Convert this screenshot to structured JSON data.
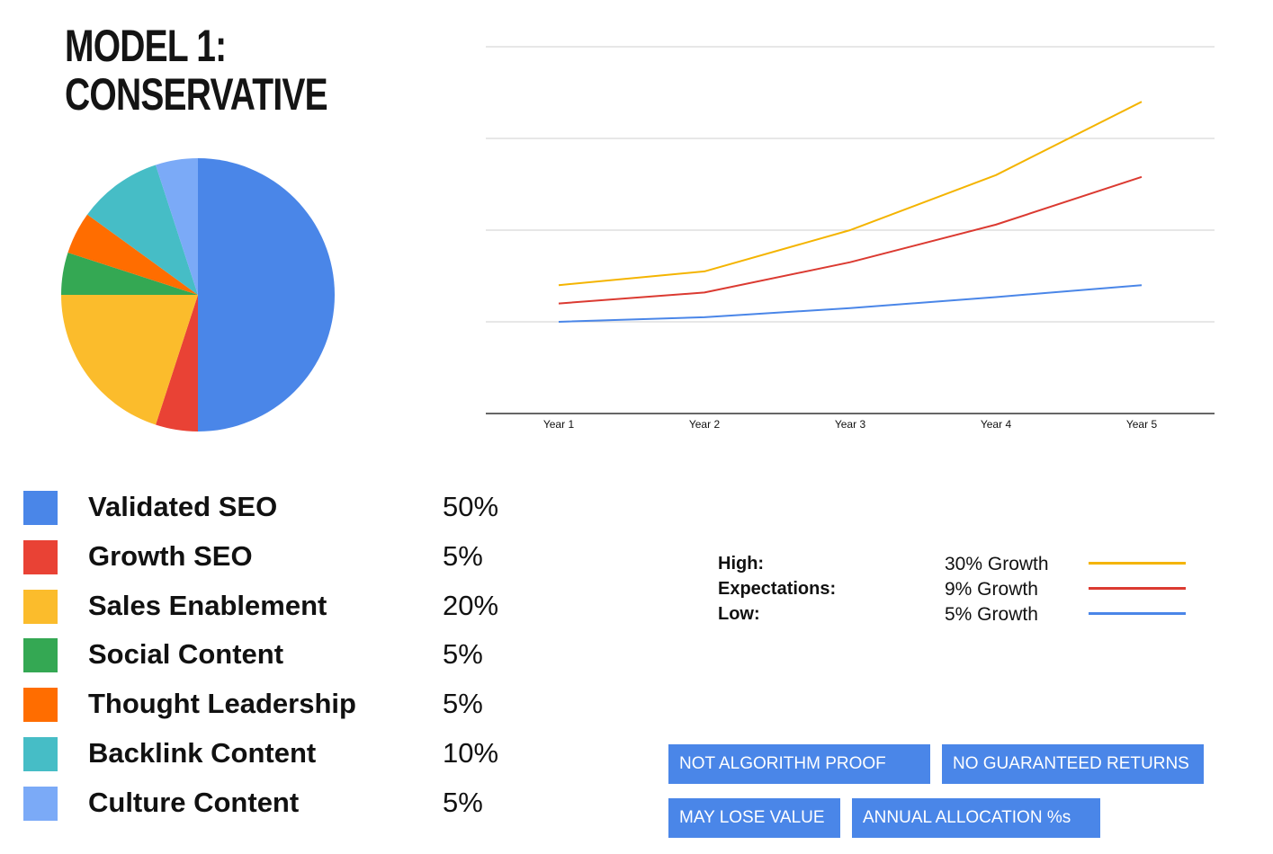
{
  "title": {
    "line1": "MODEL 1:",
    "line2": "CONSERVATIVE"
  },
  "allocation": [
    {
      "label": "Validated SEO",
      "value": "50%",
      "color": "#4a86e8"
    },
    {
      "label": "Growth SEO",
      "value": "5%",
      "color": "#e94235"
    },
    {
      "label": "Sales Enablement",
      "value": "20%",
      "color": "#fbbc2c"
    },
    {
      "label": "Social Content",
      "value": "5%",
      "color": "#34a853"
    },
    {
      "label": "Thought Leadership",
      "value": "5%",
      "color": "#ff6d00"
    },
    {
      "label": "Backlink Content",
      "value": "10%",
      "color": "#46bdc6"
    },
    {
      "label": "Culture Content",
      "value": "5%",
      "color": "#7baaf7"
    }
  ],
  "series_legend": [
    {
      "name": "High:",
      "desc": "30% Growth",
      "color": "#f4b400"
    },
    {
      "name": "Expectations:",
      "desc": "9% Growth",
      "color": "#db3a31"
    },
    {
      "name": "Low:",
      "desc": "5% Growth",
      "color": "#4a86e8"
    }
  ],
  "tags": [
    "NOT ALGORITHM PROOF",
    "NO GUARANTEED RETURNS",
    "MAY LOSE VALUE",
    "ANNUAL ALLOCATION %s"
  ],
  "chart_data": [
    {
      "type": "pie",
      "categories": [
        "Validated SEO",
        "Growth SEO",
        "Sales Enablement",
        "Social Content",
        "Thought Leadership",
        "Backlink Content",
        "Culture Content"
      ],
      "values": [
        50,
        5,
        20,
        5,
        5,
        10,
        5
      ],
      "colors": [
        "#4a86e8",
        "#e94235",
        "#fbbc2c",
        "#34a853",
        "#ff6d00",
        "#46bdc6",
        "#7baaf7"
      ],
      "start": "12 o'clock",
      "direction": "clockwise"
    },
    {
      "type": "line",
      "categories": [
        "Year 1",
        "Year 2",
        "Year 3",
        "Year 4",
        "Year 5"
      ],
      "series": [
        {
          "values": [
            1.4,
            1.55,
            2.0,
            2.6,
            3.4
          ],
          "color": "#f4b400"
        },
        {
          "values": [
            1.2,
            1.32,
            1.65,
            2.06,
            2.58
          ],
          "color": "#db3a31"
        },
        {
          "values": [
            1.0,
            1.05,
            1.15,
            1.27,
            1.4
          ],
          "color": "#4a86e8"
        }
      ],
      "ylim": [
        0,
        4
      ],
      "grid": true,
      "y_tick_labels": false
    }
  ]
}
